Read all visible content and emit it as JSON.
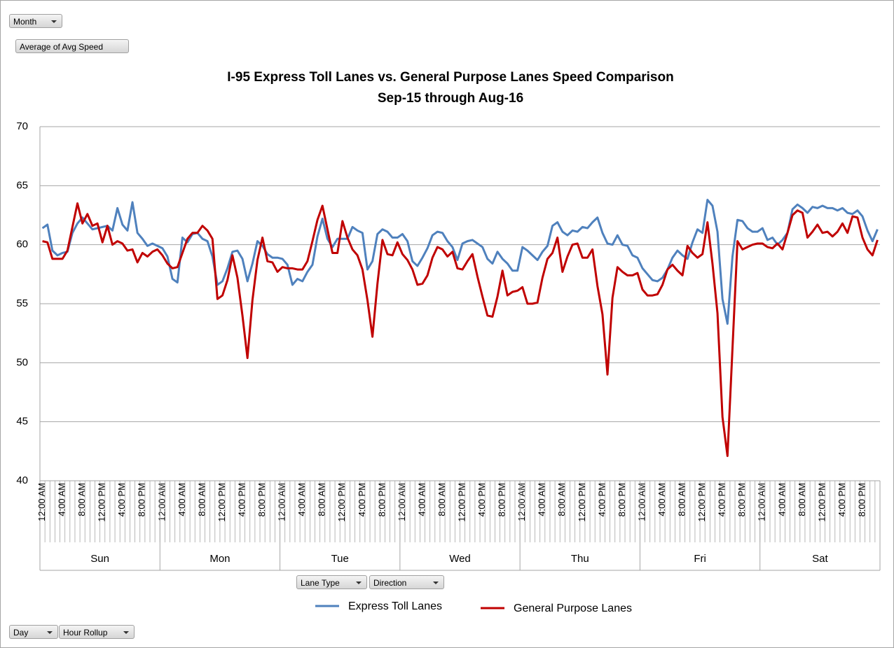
{
  "chart_data": {
    "type": "line",
    "title": "I-95 Express Toll Lanes vs. General Purpose Lanes Speed Comparison",
    "subtitle": "Sep-15 through Aug-16",
    "groups": [
      "Sun",
      "Mon",
      "Tue",
      "Wed",
      "Thu",
      "Fri",
      "Sat"
    ],
    "categories": [
      "12:00 AM",
      null,
      null,
      null,
      "4:00 AM",
      null,
      null,
      null,
      "8:00 AM",
      null,
      null,
      null,
      "12:00 PM",
      null,
      null,
      null,
      "4:00 PM",
      null,
      null,
      null,
      "8:00 PM",
      null,
      null,
      null,
      "12:00 AM",
      null,
      null,
      null,
      "4:00 AM",
      null,
      null,
      null,
      "8:00 AM",
      null,
      null,
      null,
      "12:00 PM",
      null,
      null,
      null,
      "4:00 PM",
      null,
      null,
      null,
      "8:00 PM",
      null,
      null,
      null,
      "12:00 AM",
      null,
      null,
      null,
      "4:00 AM",
      null,
      null,
      null,
      "8:00 AM",
      null,
      null,
      null,
      "12:00 PM",
      null,
      null,
      null,
      "4:00 PM",
      null,
      null,
      null,
      "8:00 PM",
      null,
      null,
      null,
      "12:00 AM",
      null,
      null,
      null,
      "4:00 AM",
      null,
      null,
      null,
      "8:00 AM",
      null,
      null,
      null,
      "12:00 PM",
      null,
      null,
      null,
      "4:00 PM",
      null,
      null,
      null,
      "8:00 PM",
      null,
      null,
      null,
      "12:00 AM",
      null,
      null,
      null,
      "4:00 AM",
      null,
      null,
      null,
      "8:00 AM",
      null,
      null,
      null,
      "12:00 PM",
      null,
      null,
      null,
      "4:00 PM",
      null,
      null,
      null,
      "8:00 PM",
      null,
      null,
      null,
      "12:00 AM",
      null,
      null,
      null,
      "4:00 AM",
      null,
      null,
      null,
      "8:00 AM",
      null,
      null,
      null,
      "12:00 PM",
      null,
      null,
      null,
      "4:00 PM",
      null,
      null,
      null,
      "8:00 PM",
      null,
      null,
      null,
      "12:00 AM",
      null,
      null,
      null,
      "4:00 AM",
      null,
      null,
      null,
      "8:00 AM",
      null,
      null,
      null,
      "12:00 PM",
      null,
      null,
      null,
      "4:00 PM",
      null,
      null,
      null,
      "8:00 PM",
      null,
      null,
      null
    ],
    "series": [
      {
        "name": "Express Toll Lanes",
        "color": "#4f81bd",
        "values": [
          61.4,
          61.7,
          59.5,
          59.1,
          59.3,
          59.4,
          61.0,
          61.8,
          62.3,
          61.8,
          61.3,
          61.4,
          61.5,
          61.6,
          61.2,
          63.1,
          61.7,
          61.2,
          63.6,
          61.0,
          60.5,
          59.9,
          60.1,
          59.9,
          59.7,
          59.0,
          57.1,
          56.8,
          60.6,
          60.2,
          60.9,
          61.0,
          60.5,
          60.3,
          59.0,
          56.6,
          56.9,
          58.0,
          59.4,
          59.5,
          58.8,
          56.9,
          58.4,
          60.3,
          59.9,
          59.2,
          58.9,
          58.9,
          58.8,
          58.3,
          56.6,
          57.1,
          56.9,
          57.7,
          58.3,
          60.7,
          62.2,
          60.5,
          59.8,
          60.5,
          60.5,
          60.5,
          61.5,
          61.2,
          61.0,
          57.9,
          58.6,
          60.9,
          61.3,
          61.1,
          60.6,
          60.6,
          60.9,
          60.3,
          58.6,
          58.2,
          58.9,
          59.7,
          60.8,
          61.1,
          61.0,
          60.3,
          59.8,
          58.7,
          60.1,
          60.3,
          60.4,
          60.1,
          59.8,
          58.8,
          58.4,
          59.4,
          58.8,
          58.4,
          57.8,
          57.8,
          59.8,
          59.5,
          59.1,
          58.7,
          59.4,
          59.9,
          61.6,
          61.9,
          61.1,
          60.8,
          61.2,
          61.1,
          61.5,
          61.4,
          61.9,
          62.3,
          61.0,
          60.1,
          60.0,
          60.8,
          60.0,
          59.9,
          59.1,
          58.9,
          58.0,
          57.5,
          57.0,
          56.9,
          57.2,
          57.9,
          58.9,
          59.5,
          59.1,
          58.8,
          60.2,
          61.3,
          61.0,
          63.8,
          63.3,
          61.1,
          55.4,
          53.3,
          59.0,
          62.1,
          62.0,
          61.4,
          61.1,
          61.1,
          61.4,
          60.4,
          60.6,
          60.0,
          60.4,
          61.0,
          63.0,
          63.4,
          63.1,
          62.7,
          63.2,
          63.1,
          63.3,
          63.1,
          63.1,
          62.9,
          63.1,
          62.7,
          62.6,
          62.9,
          62.4,
          61.2,
          60.3,
          61.3
        ]
      },
      {
        "name": "General Purpose Lanes",
        "color": "#c00000",
        "values": [
          60.3,
          60.2,
          58.8,
          58.8,
          58.8,
          59.5,
          61.5,
          63.5,
          61.8,
          62.6,
          61.6,
          61.8,
          60.2,
          61.6,
          60.0,
          60.3,
          60.1,
          59.5,
          59.6,
          58.5,
          59.3,
          59.0,
          59.4,
          59.6,
          59.1,
          58.4,
          58.0,
          58.1,
          59.3,
          60.5,
          61.0,
          61.0,
          61.6,
          61.2,
          60.5,
          55.4,
          55.7,
          57.0,
          59.1,
          57.2,
          54.0,
          50.4,
          55.3,
          58.7,
          60.6,
          58.6,
          58.5,
          57.7,
          58.1,
          58.0,
          58.0,
          57.9,
          57.9,
          58.6,
          60.3,
          62.1,
          63.3,
          61.3,
          59.3,
          59.3,
          62.0,
          60.6,
          59.6,
          59.1,
          57.9,
          55.3,
          52.2,
          56.7,
          60.4,
          59.2,
          59.1,
          60.2,
          59.2,
          58.7,
          57.9,
          56.6,
          56.7,
          57.4,
          58.9,
          59.8,
          59.6,
          59.0,
          59.4,
          58.0,
          57.9,
          58.6,
          59.2,
          57.3,
          55.6,
          54.0,
          53.9,
          55.6,
          57.8,
          55.7,
          56.0,
          56.1,
          56.4,
          55.0,
          55.0,
          55.1,
          57.2,
          58.8,
          59.3,
          60.6,
          57.7,
          59.0,
          60.0,
          60.1,
          58.9,
          58.9,
          59.6,
          56.5,
          54.1,
          49.0,
          55.5,
          58.1,
          57.7,
          57.4,
          57.4,
          57.6,
          56.2,
          55.7,
          55.7,
          55.8,
          56.6,
          57.9,
          58.3,
          57.8,
          57.4,
          59.9,
          59.3,
          58.9,
          59.2,
          61.9,
          58.4,
          54.2,
          45.4,
          42.1,
          51.2,
          60.3,
          59.6,
          59.8,
          60.0,
          60.1,
          60.1,
          59.8,
          59.7,
          60.1,
          59.6,
          61.0,
          62.5,
          62.9,
          62.7,
          60.6,
          61.1,
          61.7,
          61.0,
          61.1,
          60.7,
          61.1,
          61.8,
          61.0,
          62.4,
          62.3,
          60.6,
          59.6,
          59.1,
          60.4
        ]
      }
    ],
    "ylim": [
      40,
      70
    ],
    "yticks": [
      40,
      45,
      50,
      55,
      60,
      65,
      70
    ],
    "grid": true,
    "legend": "bottom"
  },
  "field_buttons": [
    "Month",
    "Average of Avg Speed",
    "Lane Type",
    "Direction",
    "Day",
    "Hour Rollup"
  ]
}
